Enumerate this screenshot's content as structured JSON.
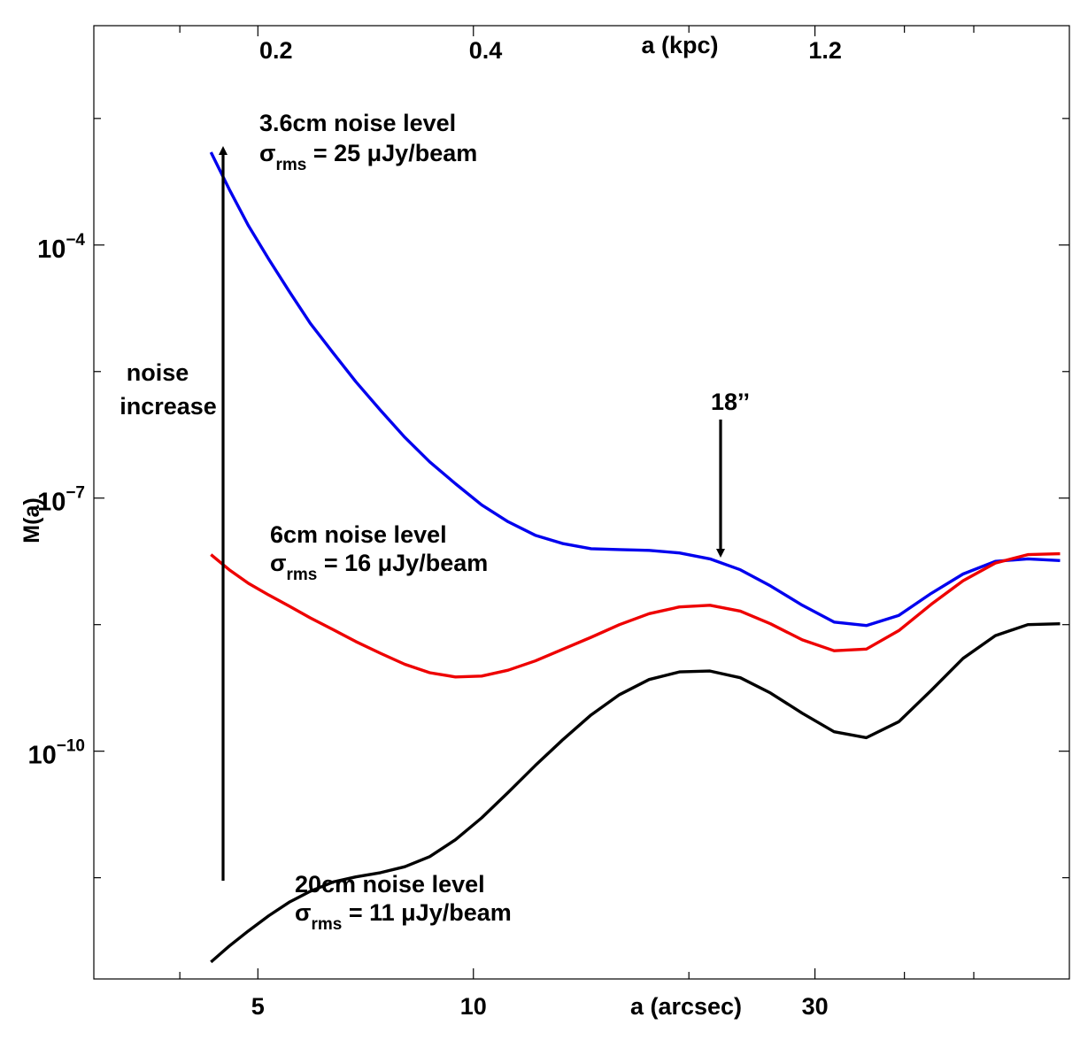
{
  "chart_data": {
    "type": "line",
    "xlabel": "a (arcsec)",
    "ylabel": "M(a)",
    "top_axis_label": "a (kpc)",
    "x_scale": "log",
    "y_scale": "log",
    "xlim": [
      2.95,
      68
    ],
    "ylim": [
      -12.7,
      -1.4
    ],
    "x_ticks": [
      {
        "value": 5,
        "label": "5"
      },
      {
        "value": 10,
        "label": "10"
      },
      {
        "value": 30,
        "label": "30"
      }
    ],
    "x_minor_ticks": [
      3.89,
      20,
      40,
      50
    ],
    "top_ticks": [
      {
        "value": 5.3,
        "label": "0.2"
      },
      {
        "value": 10.4,
        "label": "0.4"
      },
      {
        "value": 31,
        "label": "1.2"
      }
    ],
    "y_ticks": [
      {
        "exponent": -4,
        "base": "10",
        "sup": "−4"
      },
      {
        "exponent": -7,
        "base": "10",
        "sup": "−7"
      },
      {
        "exponent": -10,
        "base": "10",
        "sup": "−10"
      }
    ],
    "y_minor_ticks": [
      -2.5,
      -5.5,
      -8.5,
      -11.5
    ],
    "series": [
      {
        "color": "#0000ee",
        "points": [
          [
            4.3,
            -2.9
          ],
          [
            4.56,
            -3.34
          ],
          [
            4.85,
            -3.77
          ],
          [
            5.18,
            -4.17
          ],
          [
            5.53,
            -4.55
          ],
          [
            5.92,
            -4.93
          ],
          [
            6.37,
            -5.28
          ],
          [
            6.85,
            -5.62
          ],
          [
            7.42,
            -5.96
          ],
          [
            8.02,
            -6.28
          ],
          [
            8.69,
            -6.57
          ],
          [
            9.44,
            -6.83
          ],
          [
            10.27,
            -7.08
          ],
          [
            11.18,
            -7.28
          ],
          [
            12.2,
            -7.44
          ],
          [
            13.35,
            -7.54
          ],
          [
            14.6,
            -7.6
          ],
          [
            16.0,
            -7.61
          ],
          [
            17.6,
            -7.62
          ],
          [
            19.4,
            -7.65
          ],
          [
            21.4,
            -7.72
          ],
          [
            23.6,
            -7.85
          ],
          [
            26.0,
            -8.04
          ],
          [
            28.8,
            -8.27
          ],
          [
            31.9,
            -8.47
          ],
          [
            35.4,
            -8.51
          ],
          [
            39.3,
            -8.39
          ],
          [
            43.6,
            -8.13
          ],
          [
            48.3,
            -7.9
          ],
          [
            53.6,
            -7.75
          ],
          [
            59.5,
            -7.72
          ],
          [
            66.0,
            -7.74
          ]
        ]
      },
      {
        "color": "#ee0000",
        "points": [
          [
            4.3,
            -7.67
          ],
          [
            4.56,
            -7.85
          ],
          [
            4.85,
            -8.01
          ],
          [
            5.18,
            -8.15
          ],
          [
            5.53,
            -8.28
          ],
          [
            5.92,
            -8.42
          ],
          [
            6.37,
            -8.56
          ],
          [
            6.85,
            -8.7
          ],
          [
            7.42,
            -8.84
          ],
          [
            8.02,
            -8.97
          ],
          [
            8.69,
            -9.07
          ],
          [
            9.44,
            -9.12
          ],
          [
            10.27,
            -9.11
          ],
          [
            11.18,
            -9.04
          ],
          [
            12.2,
            -8.93
          ],
          [
            13.35,
            -8.79
          ],
          [
            14.6,
            -8.65
          ],
          [
            16.0,
            -8.5
          ],
          [
            17.6,
            -8.37
          ],
          [
            19.4,
            -8.29
          ],
          [
            21.4,
            -8.27
          ],
          [
            23.6,
            -8.34
          ],
          [
            26.0,
            -8.49
          ],
          [
            28.8,
            -8.68
          ],
          [
            31.9,
            -8.81
          ],
          [
            35.4,
            -8.79
          ],
          [
            39.3,
            -8.57
          ],
          [
            43.6,
            -8.26
          ],
          [
            48.3,
            -7.98
          ],
          [
            53.6,
            -7.77
          ],
          [
            59.5,
            -7.67
          ],
          [
            66.0,
            -7.66
          ]
        ]
      },
      {
        "color": "#000000",
        "points": [
          [
            4.3,
            -12.5
          ],
          [
            4.56,
            -12.31
          ],
          [
            4.85,
            -12.13
          ],
          [
            5.18,
            -11.95
          ],
          [
            5.53,
            -11.79
          ],
          [
            5.92,
            -11.66
          ],
          [
            6.37,
            -11.55
          ],
          [
            6.85,
            -11.49
          ],
          [
            7.42,
            -11.44
          ],
          [
            8.02,
            -11.37
          ],
          [
            8.69,
            -11.25
          ],
          [
            9.44,
            -11.05
          ],
          [
            10.27,
            -10.79
          ],
          [
            11.18,
            -10.49
          ],
          [
            12.2,
            -10.17
          ],
          [
            13.35,
            -9.86
          ],
          [
            14.6,
            -9.57
          ],
          [
            16.0,
            -9.33
          ],
          [
            17.6,
            -9.15
          ],
          [
            19.4,
            -9.06
          ],
          [
            21.4,
            -9.05
          ],
          [
            23.6,
            -9.13
          ],
          [
            26.0,
            -9.31
          ],
          [
            28.8,
            -9.55
          ],
          [
            31.9,
            -9.77
          ],
          [
            35.4,
            -9.84
          ],
          [
            39.3,
            -9.65
          ],
          [
            43.6,
            -9.28
          ],
          [
            48.3,
            -8.9
          ],
          [
            53.6,
            -8.63
          ],
          [
            59.5,
            -8.5
          ],
          [
            66.0,
            -8.49
          ]
        ]
      }
    ],
    "annotations": [
      {
        "id": "blue",
        "line1": "3.6cm noise level",
        "sigma": "σ",
        "sub": "rms",
        "rest": " = 25 μJy/beam"
      },
      {
        "id": "red",
        "line1": "6cm noise level",
        "sigma": "σ",
        "sub": "rms",
        "rest": " = 16 μJy/beam"
      },
      {
        "id": "black",
        "line1": "20cm noise level",
        "sigma": "σ",
        "sub": "rms",
        "rest": " = 11 μJy/beam"
      }
    ],
    "noise_arrow_label": [
      "noise",
      "increase"
    ],
    "marker_label": "18’’",
    "grid": false,
    "legend": "none"
  }
}
